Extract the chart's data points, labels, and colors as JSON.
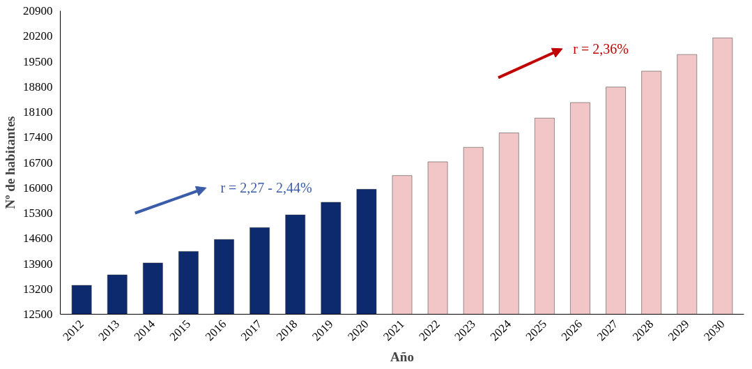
{
  "chart_data": {
    "type": "bar",
    "xlabel": "Año",
    "ylabel": "Nº de habitantes",
    "categories": [
      "2012",
      "2013",
      "2014",
      "2015",
      "2016",
      "2017",
      "2018",
      "2019",
      "2020",
      "2021",
      "2022",
      "2023",
      "2024",
      "2025",
      "2026",
      "2027",
      "2028",
      "2029",
      "2030"
    ],
    "values": [
      13300,
      13590,
      13920,
      14240,
      14570,
      14900,
      15250,
      15600,
      15960,
      16340,
      16720,
      17120,
      17520,
      17930,
      18360,
      18790,
      19230,
      19690,
      20150
    ],
    "colors": [
      "#0e2a6e",
      "#0e2a6e",
      "#0e2a6e",
      "#0e2a6e",
      "#0e2a6e",
      "#0e2a6e",
      "#0e2a6e",
      "#0e2a6e",
      "#0e2a6e",
      "#f2c6c6",
      "#f2c6c6",
      "#f2c6c6",
      "#f2c6c6",
      "#f2c6c6",
      "#f2c6c6",
      "#f2c6c6",
      "#f2c6c6",
      "#f2c6c6",
      "#f2c6c6"
    ],
    "ylim": [
      12500,
      20900
    ],
    "yticks": [
      12500,
      13200,
      13900,
      14600,
      15300,
      16000,
      16700,
      17400,
      18100,
      18800,
      19500,
      20200,
      20900
    ],
    "annotations": [
      "r = 2,27 - 2,44%",
      "r = 2,36%"
    ],
    "grid": false
  }
}
